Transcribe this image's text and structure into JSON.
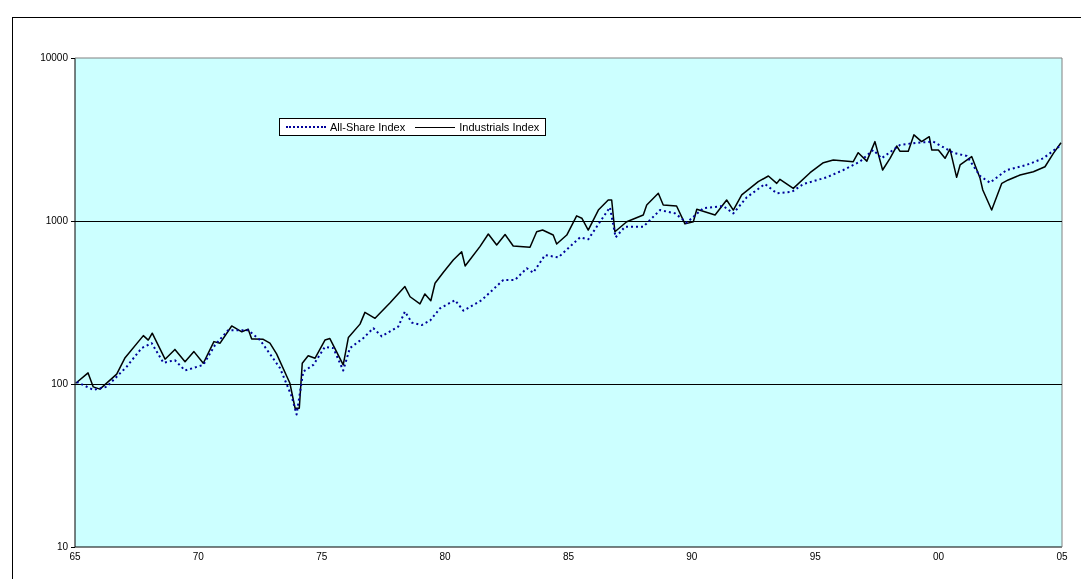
{
  "chart_data": {
    "type": "line",
    "log": "y",
    "grid": "y",
    "legend": "top left",
    "marker": "none",
    "xlim": [
      1965,
      2005
    ],
    "xticks": [
      {
        "value": 1965,
        "label": "65"
      },
      {
        "value": 1970,
        "label": "70"
      },
      {
        "value": 1975,
        "label": "75"
      },
      {
        "value": 1980,
        "label": "80"
      },
      {
        "value": 1985,
        "label": "85"
      },
      {
        "value": 1990,
        "label": "90"
      },
      {
        "value": 1995,
        "label": "95"
      },
      {
        "value": 2000,
        "label": "00"
      },
      {
        "value": 2005,
        "label": "05"
      }
    ],
    "ylim": [
      10,
      10000
    ],
    "yticks": [
      10,
      100,
      1000,
      10000
    ],
    "series": [
      {
        "name": "All-Share Index",
        "color": "#000099",
        "line_style": "dotted",
        "x": [
          1965.07,
          1965.74,
          1966.28,
          1967.1,
          1967.7,
          1968.11,
          1968.58,
          1969.05,
          1969.46,
          1970.2,
          1970.67,
          1971.21,
          1972.02,
          1972.5,
          1973.31,
          1973.78,
          1973.98,
          1974.25,
          1974.66,
          1975.13,
          1975.47,
          1975.87,
          1976.14,
          1976.68,
          1977.09,
          1977.43,
          1978.1,
          1978.37,
          1978.65,
          1979.05,
          1979.39,
          1979.79,
          1980.4,
          1980.74,
          1981.48,
          1982.36,
          1982.83,
          1983.31,
          1983.57,
          1984.05,
          1984.59,
          1985.13,
          1985.47,
          1985.8,
          1986.28,
          1986.68,
          1986.91,
          1987.29,
          1988.03,
          1988.71,
          1989.32,
          1989.79,
          1990.46,
          1991.27,
          1991.68,
          1992.22,
          1992.96,
          1993.44,
          1994.05,
          1994.52,
          1995.46,
          1996.14,
          1996.81,
          1997.35,
          1997.69,
          1998.43,
          1999.11,
          1999.78,
          2000.59,
          2001.14,
          2001.68,
          2002.08,
          2002.76,
          2003.57,
          2004.24,
          2004.96
        ],
        "values": [
          103,
          92,
          96,
          128,
          166,
          178,
          135,
          140,
          121,
          131,
          173,
          214,
          214,
          186,
          125,
          84,
          65,
          119,
          131,
          169,
          166,
          121,
          166,
          191,
          220,
          196,
          225,
          278,
          238,
          230,
          245,
          291,
          327,
          282,
          327,
          435,
          435,
          513,
          482,
          618,
          598,
          713,
          794,
          772,
          990,
          1213,
          794,
          922,
          922,
          1167,
          1114,
          977,
          1197,
          1236,
          1114,
          1396,
          1686,
          1480,
          1509,
          1686,
          1853,
          2055,
          2313,
          2728,
          2425,
          2924,
          3020,
          3070,
          2624,
          2505,
          1888,
          1718,
          2055,
          2208,
          2425,
          2924
        ]
      },
      {
        "name": "Industrials Index",
        "color": "#000000",
        "line_style": "solid",
        "x": [
          1965.03,
          1965.53,
          1965.74,
          1966.01,
          1966.69,
          1967.03,
          1967.77,
          1967.97,
          1968.13,
          1968.65,
          1969.05,
          1969.46,
          1969.82,
          1970.2,
          1970.63,
          1970.88,
          1971.35,
          1971.76,
          1972.02,
          1972.16,
          1972.63,
          1972.9,
          1973.17,
          1973.71,
          1973.92,
          1974.09,
          1974.21,
          1974.45,
          1974.73,
          1975.13,
          1975.33,
          1975.87,
          1976.08,
          1976.55,
          1976.75,
          1977.16,
          1977.77,
          1978.37,
          1978.58,
          1978.98,
          1979.18,
          1979.42,
          1979.59,
          1979.93,
          1980.33,
          1980.67,
          1980.81,
          1981.41,
          1981.75,
          1982.09,
          1982.43,
          1982.76,
          1983.44,
          1983.71,
          1983.95,
          1984.38,
          1984.52,
          1984.93,
          1985.33,
          1985.54,
          1985.8,
          1986.21,
          1986.61,
          1986.75,
          1986.88,
          1987.36,
          1988.03,
          1988.17,
          1988.64,
          1988.84,
          1989.38,
          1989.72,
          1990.06,
          1990.2,
          1990.94,
          1991.41,
          1991.68,
          1992.02,
          1992.69,
          1993.1,
          1993.44,
          1993.57,
          1994.11,
          1994.79,
          1995.33,
          1995.73,
          1996.54,
          1996.74,
          1997.09,
          1997.42,
          1997.73,
          1998.03,
          1998.3,
          1998.43,
          1998.77,
          1999.0,
          1999.31,
          1999.62,
          1999.72,
          1999.99,
          2000.26,
          2000.46,
          2000.73,
          2000.87,
          2001.34,
          2001.68,
          2001.79,
          2002.15,
          2002.56,
          2002.82,
          2003.3,
          2003.84,
          2004.31,
          2004.65,
          2004.96
        ],
        "values": [
          101,
          117,
          96,
          93,
          115,
          145,
          198,
          186,
          205,
          142,
          163,
          137,
          158,
          134,
          182,
          178,
          227,
          209,
          217,
          189,
          188,
          178,
          153,
          101,
          71,
          71,
          134,
          149,
          144,
          186,
          190,
          131,
          193,
          233,
          275,
          253,
          315,
          396,
          343,
          310,
          357,
          324,
          415,
          485,
          576,
          648,
          530,
          696,
          832,
          713,
          826,
          703,
          690,
          859,
          880,
          820,
          722,
          820,
          1075,
          1040,
          880,
          1167,
          1345,
          1345,
          859,
          990,
          1089,
          1254,
          1480,
          1254,
          1236,
          960,
          990,
          1180,
          1089,
          1345,
          1167,
          1445,
          1742,
          1888,
          1702,
          1802,
          1585,
          1978,
          2278,
          2367,
          2312,
          2624,
          2330,
          3070,
          2055,
          2425,
          2884,
          2683,
          2683,
          3376,
          3070,
          3290,
          2728,
          2728,
          2425,
          2760,
          1853,
          2208,
          2484,
          1828,
          1549,
          1167,
          1702,
          1786,
          1915,
          2006,
          2152,
          2600,
          3020
        ]
      }
    ]
  }
}
